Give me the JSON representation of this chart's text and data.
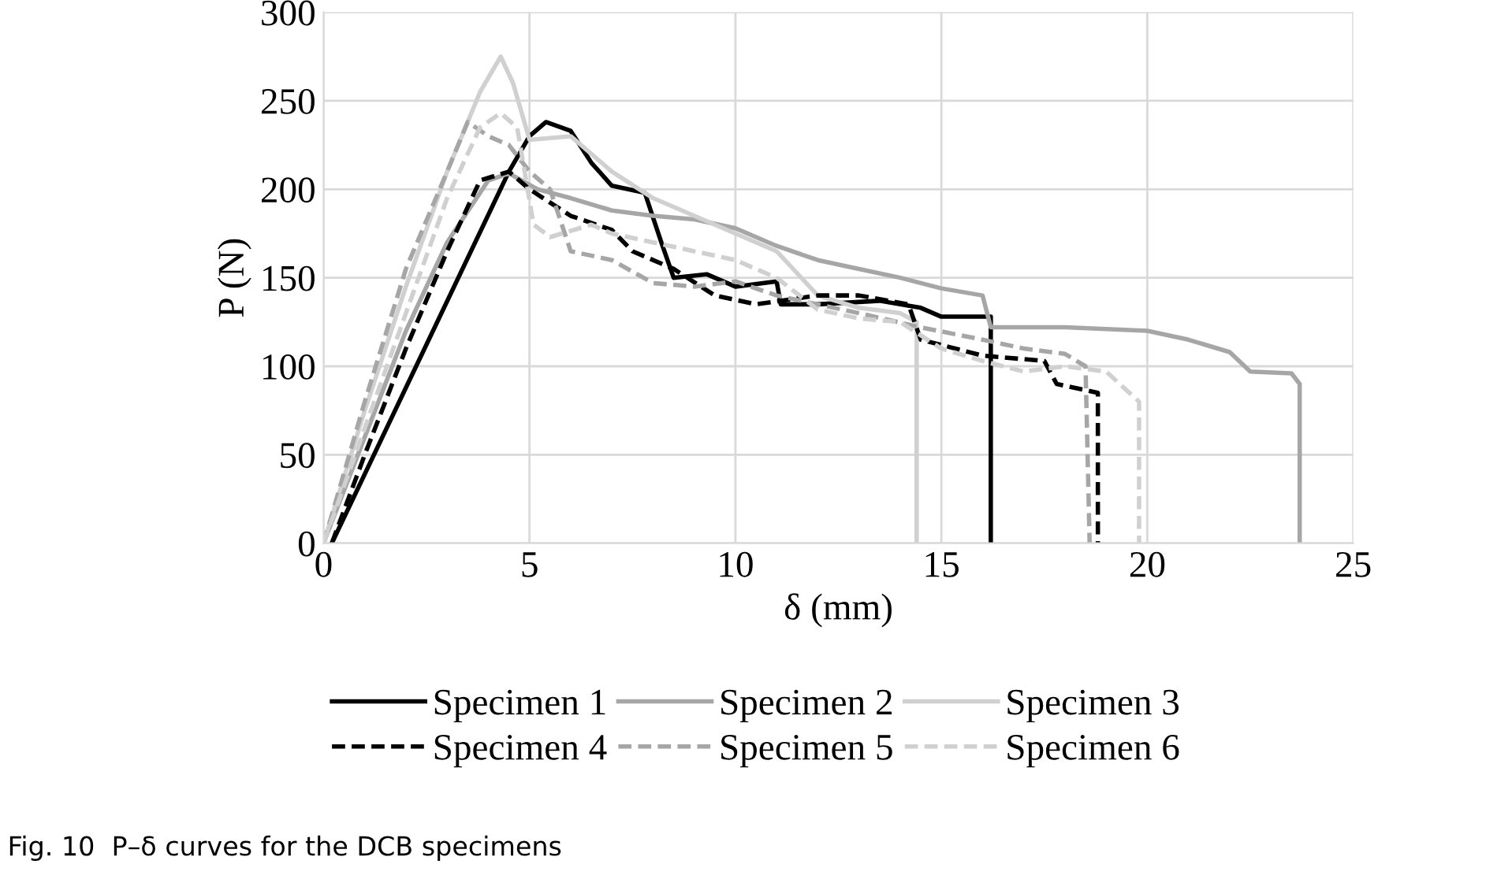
{
  "chart_data": {
    "type": "line",
    "xlabel": "δ (mm)",
    "ylabel": "P (N)",
    "xlim": [
      0,
      25
    ],
    "ylim": [
      0,
      300
    ],
    "xticks": [
      0,
      5,
      10,
      15,
      20,
      25
    ],
    "yticks": [
      0,
      50,
      100,
      150,
      200,
      250,
      300
    ],
    "grid": true,
    "legend": "bottom",
    "annotations": [
      "Fig. 10  P–δ curves for the DCB specimens"
    ],
    "series": [
      {
        "name": "Specimen 1",
        "color": "#000000",
        "line_style": "solid",
        "x": [
          0.2,
          4.5,
          5,
          5.4,
          6,
          6.5,
          7,
          7.8,
          8.2,
          8.5,
          9.3,
          10,
          11,
          11.1,
          12,
          13.5,
          14.5,
          15,
          16.2,
          16.2
        ],
        "values": [
          0,
          210,
          230,
          238,
          233,
          215,
          202,
          198,
          170,
          150,
          152,
          145,
          148,
          135,
          135,
          137,
          133,
          128,
          128,
          0
        ]
      },
      {
        "name": "Specimen 2",
        "color": "#a6a6a6",
        "line_style": "solid",
        "x": [
          0,
          1,
          2,
          3,
          4,
          4.5,
          5.2,
          6,
          7,
          8,
          9,
          10,
          11,
          12,
          13,
          14,
          15,
          16,
          16.2,
          18,
          20,
          21,
          22,
          22.5,
          23.5,
          23.7,
          23.7
        ],
        "values": [
          0,
          60,
          120,
          170,
          205,
          209,
          200,
          195,
          188,
          185,
          183,
          178,
          168,
          160,
          155,
          150,
          144,
          140,
          122,
          122,
          120,
          115,
          108,
          97,
          96,
          90,
          0
        ]
      },
      {
        "name": "Specimen 3",
        "color": "#d0d0d0",
        "line_style": "solid",
        "x": [
          0,
          1,
          2,
          3,
          3.8,
          4.3,
          4.6,
          5,
          6,
          7,
          8,
          9,
          10,
          11,
          11.6,
          12,
          13,
          14,
          14.4,
          14.4
        ],
        "values": [
          0,
          75,
          145,
          210,
          255,
          275,
          260,
          228,
          230,
          210,
          195,
          185,
          175,
          165,
          150,
          140,
          133,
          130,
          125,
          0
        ]
      },
      {
        "name": "Specimen 4",
        "color": "#000000",
        "line_style": "dashed",
        "x": [
          0.2,
          1,
          2,
          3,
          3.8,
          4.5,
          5,
          6,
          7,
          7.5,
          8.5,
          9.5,
          10.5,
          12,
          13,
          14.2,
          14.5,
          16,
          17.5,
          17.8,
          18.8,
          18.8
        ],
        "values": [
          0,
          50,
          110,
          165,
          205,
          210,
          200,
          185,
          177,
          165,
          155,
          140,
          135,
          140,
          140,
          135,
          115,
          106,
          103,
          90,
          85,
          0
        ]
      },
      {
        "name": "Specimen 5",
        "color": "#a6a6a6",
        "line_style": "dashed",
        "x": [
          0,
          1,
          2,
          3,
          3.5,
          4,
          4.5,
          5,
          5.5,
          6,
          7,
          8,
          9,
          10,
          11,
          12,
          13,
          14.5,
          16,
          17,
          18,
          18.5,
          18.6
        ],
        "values": [
          0,
          80,
          155,
          210,
          238,
          230,
          225,
          210,
          200,
          165,
          160,
          147,
          145,
          148,
          140,
          135,
          130,
          122,
          115,
          110,
          107,
          100,
          0
        ]
      },
      {
        "name": "Specimen 6",
        "color": "#d0d0d0",
        "line_style": "dashed",
        "x": [
          0,
          1,
          2,
          3,
          3.8,
          4.3,
          4.7,
          5.1,
          5.5,
          6.5,
          7,
          8,
          9,
          10,
          11,
          12,
          13,
          14,
          15,
          16,
          17,
          18,
          19,
          19.8,
          19.8
        ],
        "values": [
          0,
          65,
          130,
          195,
          235,
          243,
          235,
          180,
          173,
          180,
          175,
          170,
          165,
          160,
          150,
          132,
          127,
          125,
          110,
          103,
          97,
          100,
          97,
          80,
          0
        ]
      }
    ]
  }
}
